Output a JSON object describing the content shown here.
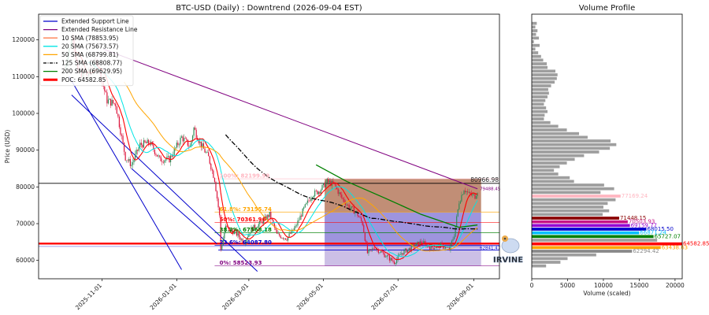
{
  "chart_data": [
    {
      "type": "candlestick",
      "title": "BTC-USD (Daily) : Downtrend (2026-09-04 EST)",
      "ylabel": "Price (USD)",
      "xlabel": "",
      "ylim": [
        55000,
        127000
      ],
      "xlim": [
        "2025-09-10",
        "2026-09-22"
      ],
      "grid": false,
      "legend_position": "top-left",
      "x_ticks": [
        "2025-11-01",
        "2026-01-01",
        "2026-03-01",
        "2026-05-01",
        "2026-07-01",
        "2026-09-01"
      ],
      "y_ticks": [
        60000,
        70000,
        80000,
        90000,
        100000,
        110000,
        120000
      ],
      "legend": [
        {
          "label": "Extended Support Line",
          "color": "#0000cc",
          "style": "solid"
        },
        {
          "label": "Extended Resistance Line",
          "color": "#800080",
          "style": "solid"
        },
        {
          "label": "10 SMA (78853.95)",
          "color": "#ff7f50",
          "style": "solid"
        },
        {
          "label": "20 SMA (75673.57)",
          "color": "#00e5e5",
          "style": "solid"
        },
        {
          "label": "50 SMA (68799.81)",
          "color": "#ffa500",
          "style": "solid"
        },
        {
          "label": "125 SMA (68808.77)",
          "color": "#000000",
          "style": "dashdot"
        },
        {
          "label": "200 SMA (69629.95)",
          "color": "#008000",
          "style": "solid"
        },
        {
          "label": "POC: 64582.85",
          "color": "#ff0000",
          "style": "thick"
        }
      ],
      "price_path": [
        [
          "2025-10-01",
          112000
        ],
        [
          "2025-10-08",
          121500
        ],
        [
          "2025-10-12",
          111000
        ],
        [
          "2025-10-20",
          110500
        ],
        [
          "2025-10-28",
          114000
        ],
        [
          "2025-11-05",
          103500
        ],
        [
          "2025-11-12",
          102500
        ],
        [
          "2025-11-20",
          88000
        ],
        [
          "2025-11-25",
          86000
        ],
        [
          "2025-12-02",
          91500
        ],
        [
          "2025-12-10",
          92000
        ],
        [
          "2025-12-18",
          87500
        ],
        [
          "2025-12-26",
          87500
        ],
        [
          "2026-01-05",
          93500
        ],
        [
          "2026-01-12",
          91000
        ],
        [
          "2026-01-15",
          96000
        ],
        [
          "2026-01-20",
          92000
        ],
        [
          "2026-01-27",
          88000
        ],
        [
          "2026-02-01",
          82000
        ],
        [
          "2026-02-05",
          72000
        ],
        [
          "2026-02-06",
          63000
        ],
        [
          "2026-02-10",
          69000
        ],
        [
          "2026-02-18",
          67500
        ],
        [
          "2026-02-25",
          65000
        ],
        [
          "2026-03-03",
          68500
        ],
        [
          "2026-03-10",
          70000
        ],
        [
          "2026-03-18",
          72500
        ],
        [
          "2026-03-24",
          67000
        ],
        [
          "2026-04-01",
          66000
        ],
        [
          "2026-04-08",
          69000
        ],
        [
          "2026-04-15",
          74000
        ],
        [
          "2026-04-22",
          78000
        ],
        [
          "2026-04-28",
          79000
        ],
        [
          "2026-05-04",
          81500
        ],
        [
          "2026-05-10",
          80500
        ],
        [
          "2026-05-16",
          77000
        ],
        [
          "2026-05-22",
          74500
        ],
        [
          "2026-05-28",
          73000
        ],
        [
          "2026-06-02",
          70000
        ],
        [
          "2026-06-06",
          62000
        ],
        [
          "2026-06-12",
          63500
        ],
        [
          "2026-06-20",
          61500
        ],
        [
          "2026-06-28",
          59500
        ],
        [
          "2026-07-04",
          62000
        ],
        [
          "2026-07-12",
          63500
        ],
        [
          "2026-07-20",
          65000
        ],
        [
          "2026-07-28",
          63500
        ],
        [
          "2026-08-05",
          64000
        ],
        [
          "2026-08-12",
          63000
        ],
        [
          "2026-08-16",
          67000
        ],
        [
          "2026-08-20",
          76000
        ],
        [
          "2026-08-24",
          79500
        ],
        [
          "2026-08-28",
          78000
        ],
        [
          "2026-09-02",
          77500
        ],
        [
          "2026-09-04",
          79000
        ]
      ],
      "horizontal_levels": [
        {
          "label": "80966.98",
          "value": 80966.98,
          "color": "#000000"
        },
        {
          "label": "79488.45",
          "value": 79488.45,
          "color": "#800080"
        },
        {
          "label": "62841.47",
          "value": 62841.47,
          "color": "#0000cc"
        },
        {
          "label": "64582.85",
          "value": 64582.85,
          "color": "#ff0000"
        }
      ],
      "fibonacci_labels": [
        {
          "label": "100%: 82199.99",
          "value": 82199.99,
          "color": "#ffb6c1"
        },
        {
          "label": "61.8%: 73155.74",
          "value": 73155.74,
          "color": "#ffa500"
        },
        {
          "label": "50%: 70361.96",
          "value": 70361.96,
          "color": "#ff0000"
        },
        {
          "label": "38.2%: 67568.18",
          "value": 67568.18,
          "color": "#008000"
        },
        {
          "label": "23.6%: 64087.80",
          "value": 64087.8,
          "color": "#0000cc"
        },
        {
          "label": "0%: 58523.93",
          "value": 58523.93,
          "color": "#800080"
        }
      ]
    },
    {
      "type": "bar",
      "orientation": "horizontal",
      "title": "Volume Profile",
      "xlabel": "Volume (scaled)",
      "ylabel": "",
      "xlim": [
        0,
        21000
      ],
      "x_ticks": [
        0,
        5000,
        10000,
        15000,
        20000
      ],
      "levels": [
        {
          "price": 124500,
          "volume": 700
        },
        {
          "price": 123500,
          "volume": 500
        },
        {
          "price": 122500,
          "volume": 800
        },
        {
          "price": 121500,
          "volume": 600
        },
        {
          "price": 120500,
          "volume": 1000
        },
        {
          "price": 119500,
          "volume": 300
        },
        {
          "price": 118500,
          "volume": 1100
        },
        {
          "price": 117500,
          "volume": 500
        },
        {
          "price": 116500,
          "volume": 900
        },
        {
          "price": 115500,
          "volume": 1300
        },
        {
          "price": 114500,
          "volume": 1600
        },
        {
          "price": 113500,
          "volume": 2100
        },
        {
          "price": 112500,
          "volume": 2200
        },
        {
          "price": 111500,
          "volume": 3300
        },
        {
          "price": 110500,
          "volume": 3600
        },
        {
          "price": 109500,
          "volume": 3500
        },
        {
          "price": 108500,
          "volume": 3200
        },
        {
          "price": 107500,
          "volume": 2700
        },
        {
          "price": 106500,
          "volume": 2300
        },
        {
          "price": 105500,
          "volume": 2400
        },
        {
          "price": 104500,
          "volume": 2200
        },
        {
          "price": 103500,
          "volume": 1900
        },
        {
          "price": 102500,
          "volume": 1700
        },
        {
          "price": 101500,
          "volume": 2000
        },
        {
          "price": 100500,
          "volume": 2200
        },
        {
          "price": 99500,
          "volume": 1800
        },
        {
          "price": 98500,
          "volume": 1700
        },
        {
          "price": 97500,
          "volume": 2600
        },
        {
          "price": 96500,
          "volume": 3700
        },
        {
          "price": 95500,
          "volume": 4900
        },
        {
          "price": 94500,
          "volume": 6600
        },
        {
          "price": 93500,
          "volume": 7800
        },
        {
          "price": 92500,
          "volume": 11000
        },
        {
          "price": 91500,
          "volume": 11800
        },
        {
          "price": 90500,
          "volume": 10900
        },
        {
          "price": 89500,
          "volume": 9400
        },
        {
          "price": 88500,
          "volume": 7300
        },
        {
          "price": 87500,
          "volume": 6000
        },
        {
          "price": 86500,
          "volume": 4900
        },
        {
          "price": 85500,
          "volume": 3900
        },
        {
          "price": 84500,
          "volume": 3100
        },
        {
          "price": 83500,
          "volume": 3700
        },
        {
          "price": 82500,
          "volume": 5300
        },
        {
          "price": 81500,
          "volume": 5900
        },
        {
          "price": 80500,
          "volume": 10100
        },
        {
          "price": 79500,
          "volume": 11500
        },
        {
          "price": 78500,
          "volume": 9600
        },
        {
          "price": 77500,
          "volume": 12400,
          "label": "77169.24",
          "color": "#ffb6c1"
        },
        {
          "price": 76500,
          "volume": 11700
        },
        {
          "price": 75500,
          "volume": 10600
        },
        {
          "price": 74500,
          "volume": 10000
        },
        {
          "price": 73500,
          "volume": 10800
        },
        {
          "price": 72500,
          "volume": 9900
        },
        {
          "price": 71500,
          "volume": 12200,
          "label": "71448.15",
          "color": "#8b0000"
        },
        {
          "price": 70500,
          "volume": 13400,
          "label": "70503.93",
          "color": "#c71585"
        },
        {
          "price": 69500,
          "volume": 13700,
          "label": "69159.77",
          "color": "#9400d3"
        },
        {
          "price": 68500,
          "volume": 16000,
          "label": "68015.50",
          "color": "#0000cc"
        },
        {
          "price": 67500,
          "volume": 15000,
          "label": "66871.24",
          "color": "#00bfff"
        },
        {
          "price": 66500,
          "volume": 17000,
          "label": "65727.07",
          "color": "#008000"
        },
        {
          "price": 65500,
          "volume": 17500
        },
        {
          "price": 64500,
          "volume": 21000,
          "label": "64582.85",
          "color": "#ff0000"
        },
        {
          "price": 63500,
          "volume": 18000,
          "label": "63438.63",
          "color": "#ffa500"
        },
        {
          "price": 62500,
          "volume": 14000,
          "label": "62294.42",
          "color": "#888888"
        },
        {
          "price": 61500,
          "volume": 9000
        },
        {
          "price": 60500,
          "volume": 5000
        },
        {
          "price": 59500,
          "volume": 4000
        },
        {
          "price": 58500,
          "volume": 2000
        }
      ]
    }
  ],
  "watermark_text": "IRVINE"
}
